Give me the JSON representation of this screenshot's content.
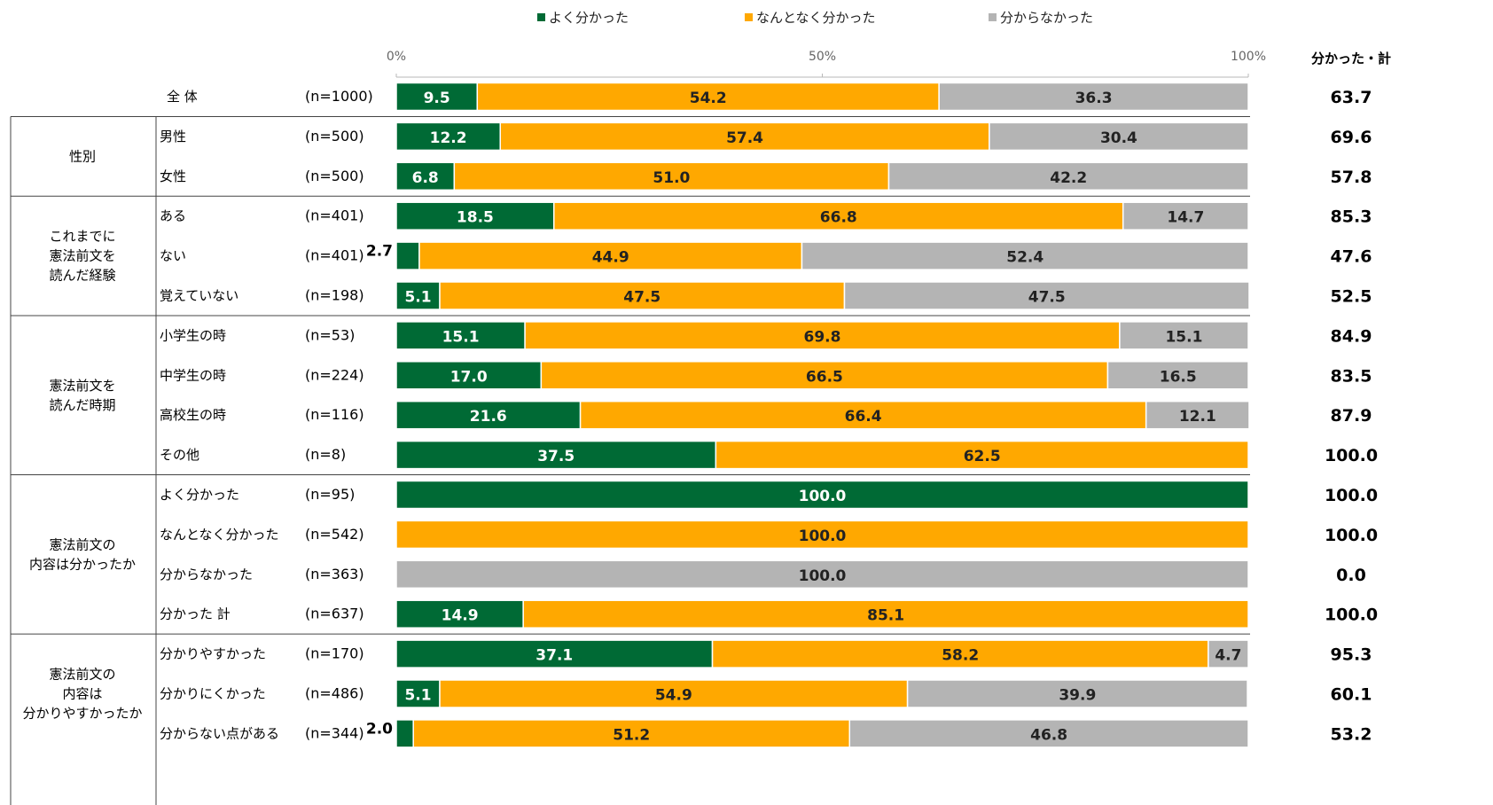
{
  "chart_data": {
    "type": "bar",
    "orientation": "horizontal-stacked-100",
    "axis_ticks": [
      "0%",
      "50%",
      "100%"
    ],
    "xlim": [
      0,
      100
    ],
    "legend_position": "top",
    "series": [
      {
        "name": "よく分かった",
        "color": "#006a35"
      },
      {
        "name": "なんとなく分かった",
        "color": "#ffa800"
      },
      {
        "name": "分からなかった",
        "color": "#b4b4b4"
      }
    ],
    "total_header": "分かった・計",
    "groups": [
      {
        "label": [],
        "rows": [
          {
            "label": "全 体",
            "n": "(n=1000)",
            "values": [
              9.5,
              54.2,
              36.3
            ],
            "labels": [
              "9.5",
              "54.2",
              "36.3"
            ],
            "total": "63.7"
          }
        ]
      },
      {
        "label": [
          "性別"
        ],
        "rows": [
          {
            "label": "男性",
            "n": "(n=500)",
            "values": [
              12.2,
              57.4,
              30.4
            ],
            "labels": [
              "12.2",
              "57.4",
              "30.4"
            ],
            "total": "69.6"
          },
          {
            "label": "女性",
            "n": "(n=500)",
            "values": [
              6.8,
              51.0,
              42.2
            ],
            "labels": [
              "6.8",
              "51.0",
              "42.2"
            ],
            "total": "57.8"
          }
        ]
      },
      {
        "label": [
          "これまでに",
          "憲法前文を",
          "読んだ経験"
        ],
        "rows": [
          {
            "label": "ある",
            "n": "(n=401)",
            "values": [
              18.5,
              66.8,
              14.7
            ],
            "labels": [
              "18.5",
              "66.8",
              "14.7"
            ],
            "total": "85.3"
          },
          {
            "label": "ない",
            "n": "(n=401)",
            "values": [
              2.7,
              44.9,
              52.4
            ],
            "labels": [
              "2.7",
              "44.9",
              "52.4"
            ],
            "total": "47.6"
          },
          {
            "label": "覚えていない",
            "n": "(n=198)",
            "values": [
              5.1,
              47.5,
              47.5
            ],
            "labels": [
              "5.1",
              "47.5",
              "47.5"
            ],
            "total": "52.5"
          }
        ]
      },
      {
        "label": [
          "憲法前文を",
          "読んだ時期"
        ],
        "rows": [
          {
            "label": "小学生の時",
            "n": "(n=53)",
            "values": [
              15.1,
              69.8,
              15.1
            ],
            "labels": [
              "15.1",
              "69.8",
              "15.1"
            ],
            "total": "84.9"
          },
          {
            "label": "中学生の時",
            "n": "(n=224)",
            "values": [
              17.0,
              66.5,
              16.5
            ],
            "labels": [
              "17.0",
              "66.5",
              "16.5"
            ],
            "total": "83.5"
          },
          {
            "label": "高校生の時",
            "n": "(n=116)",
            "values": [
              21.6,
              66.4,
              12.1
            ],
            "labels": [
              "21.6",
              "66.4",
              "12.1"
            ],
            "total": "87.9"
          },
          {
            "label": "その他",
            "n": "(n=8)",
            "values": [
              37.5,
              62.5,
              0
            ],
            "labels": [
              "37.5",
              "62.5",
              ""
            ],
            "total": "100.0"
          }
        ]
      },
      {
        "label": [
          "憲法前文の",
          "内容は分かったか"
        ],
        "rows": [
          {
            "label": "よく分かった",
            "n": "(n=95)",
            "values": [
              100.0,
              0,
              0
            ],
            "labels": [
              "100.0",
              "",
              ""
            ],
            "total": "100.0"
          },
          {
            "label": "なんとなく分かった",
            "n": "(n=542)",
            "values": [
              0,
              100.0,
              0
            ],
            "labels": [
              "",
              "100.0",
              ""
            ],
            "total": "100.0"
          },
          {
            "label": "分からなかった",
            "n": "(n=363)",
            "values": [
              0,
              0,
              100.0
            ],
            "labels": [
              "",
              "",
              "100.0"
            ],
            "total": "0.0"
          },
          {
            "label": "分かった 計",
            "n": "(n=637)",
            "values": [
              14.9,
              85.1,
              0
            ],
            "labels": [
              "14.9",
              "85.1",
              ""
            ],
            "total": "100.0"
          }
        ]
      },
      {
        "label": [
          "憲法前文の",
          "内容は",
          "分かりやすかったか"
        ],
        "rows": [
          {
            "label": "分かりやすかった",
            "n": "(n=170)",
            "values": [
              37.1,
              58.2,
              4.7
            ],
            "labels": [
              "37.1",
              "58.2",
              "4.7"
            ],
            "total": "95.3"
          },
          {
            "label": "分かりにくかった",
            "n": "(n=486)",
            "values": [
              5.1,
              54.9,
              39.9
            ],
            "labels": [
              "5.1",
              "54.9",
              "39.9"
            ],
            "total": "60.1"
          },
          {
            "label": "分からない点がある",
            "n": "(n=344)",
            "values": [
              2.0,
              51.2,
              46.8
            ],
            "labels": [
              "2.0",
              "51.2",
              "46.8"
            ],
            "total": "53.2"
          }
        ]
      }
    ]
  }
}
